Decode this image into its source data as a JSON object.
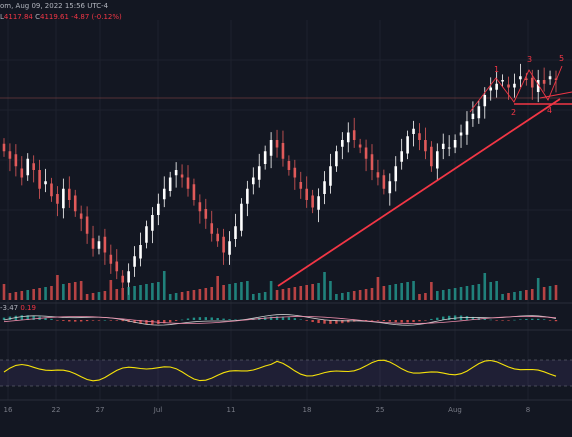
{
  "header": {
    "line1": "om, Aug 09, 2022 15:56 UTC-4",
    "ohlc_low_prefix": "L",
    "ohlc_low": "4117.84",
    "ohlc_close_prefix": "C",
    "ohlc_close": "4119.61",
    "ohlc_change": "-4.87 (-0.12%)",
    "macd_label": "-3.47",
    "macd_value": "0.19"
  },
  "colors": {
    "background": "#131722",
    "up_candle": "#ffffff",
    "down_candle": "#e05a5a",
    "vol_up": "#26a69a",
    "vol_down": "#ef5350",
    "trendline": "#f23645",
    "rsi_line": "#f5e10a",
    "rsi_band": "#7e57c2",
    "grid": "#1e222d"
  },
  "chart_data": {
    "type": "candlestick",
    "x_ticks": [
      "16",
      "22",
      "27",
      "Jul",
      "11",
      "18",
      "25",
      "Aug",
      "8"
    ],
    "y_range_note": "no price scale visible",
    "panes": [
      "price",
      "volume",
      "macd",
      "rsi"
    ],
    "wave_labels": [
      "1",
      "2",
      "3",
      "4",
      "5"
    ],
    "rsi_band_levels": [
      30,
      70
    ],
    "closes": [
      62,
      60,
      58,
      55,
      60,
      57,
      52,
      54,
      50,
      48,
      52,
      49,
      46,
      44,
      40,
      36,
      38,
      35,
      32,
      30,
      27,
      30,
      34,
      37,
      42,
      45,
      48,
      52,
      55,
      57,
      55,
      52,
      49,
      46,
      44,
      40,
      38,
      35,
      38,
      42,
      48,
      52,
      55,
      58,
      62,
      65,
      63,
      60,
      57,
      55,
      52,
      49,
      47,
      50,
      54,
      58,
      62,
      65,
      67,
      65,
      63,
      60,
      57,
      55,
      52,
      54,
      58,
      62,
      66,
      68,
      65,
      62,
      58,
      62,
      64,
      63,
      65,
      67,
      70,
      72,
      74,
      77,
      79,
      80,
      81,
      79,
      80,
      82,
      81,
      79,
      81,
      80,
      82,
      81
    ]
  }
}
